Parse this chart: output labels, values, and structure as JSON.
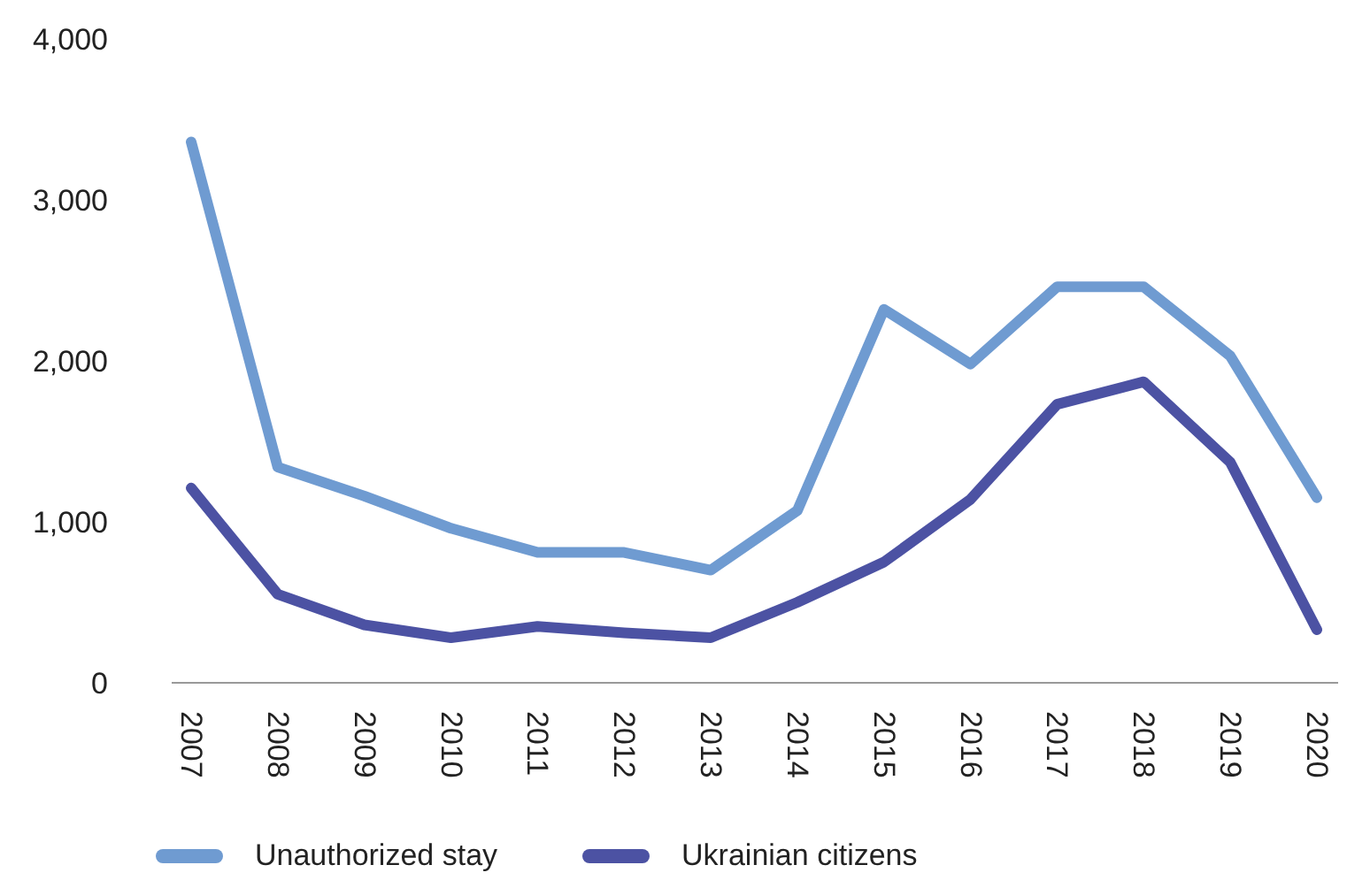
{
  "chart_data": {
    "type": "line",
    "categories": [
      "2007",
      "2008",
      "2009",
      "2010",
      "2011",
      "2012",
      "2013",
      "2014",
      "2015",
      "2016",
      "2017",
      "2018",
      "2019",
      "2020"
    ],
    "series": [
      {
        "name": "Unauthorized stay",
        "color": "#6f9bd1",
        "values": [
          3360,
          1340,
          1160,
          960,
          810,
          810,
          700,
          1070,
          2320,
          1980,
          2460,
          2460,
          2030,
          1150
        ]
      },
      {
        "name": "Ukrainian citizens",
        "color": "#4c52a3",
        "values": [
          1210,
          550,
          360,
          280,
          350,
          310,
          280,
          500,
          750,
          1140,
          1730,
          1870,
          1370,
          330
        ]
      }
    ],
    "ylim": [
      0,
      4000
    ],
    "yticks": [
      {
        "value": 0,
        "label": "0"
      },
      {
        "value": 1000,
        "label": "1,000"
      },
      {
        "value": 2000,
        "label": "2,000"
      },
      {
        "value": 3000,
        "label": "3,000"
      },
      {
        "value": 4000,
        "label": "4,000"
      }
    ],
    "grid": false,
    "legend": "bottom",
    "marker": "none",
    "line_style": "solid"
  }
}
